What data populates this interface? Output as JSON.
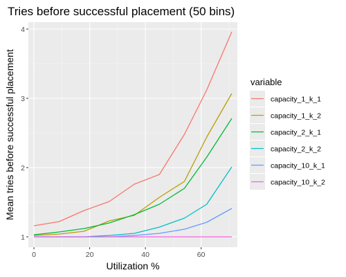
{
  "chart_data": {
    "type": "line",
    "title": "Tries before successful placement (50 bins)",
    "xlabel": "Utilization %",
    "ylabel": "Mean tries before successful placement",
    "xlim": [
      -2,
      73
    ],
    "ylim": [
      0.85,
      4.1
    ],
    "x_ticks": [
      0,
      20,
      40,
      60
    ],
    "x_tick_labels": [
      "0",
      "20",
      "40",
      "60"
    ],
    "y_ticks": [
      1,
      2,
      3,
      4
    ],
    "y_tick_labels": [
      "1",
      "2",
      "3",
      "4"
    ],
    "grid": true,
    "legend": {
      "title": "variable",
      "placement": "right"
    },
    "x": [
      0,
      9,
      18,
      27,
      36,
      45,
      54,
      62,
      71
    ],
    "series": [
      {
        "name": "capacity_1_k_1",
        "color": "#F8766D",
        "values": [
          1.16,
          1.22,
          1.38,
          1.51,
          1.76,
          1.9,
          2.48,
          3.12,
          3.96
        ]
      },
      {
        "name": "capacity_1_k_2",
        "color": "#B79F00",
        "values": [
          1.02,
          1.04,
          1.08,
          1.23,
          1.31,
          1.57,
          1.8,
          2.44,
          3.07
        ]
      },
      {
        "name": "capacity_2_k_1",
        "color": "#00BA38",
        "values": [
          1.03,
          1.07,
          1.12,
          1.2,
          1.32,
          1.47,
          1.7,
          2.15,
          2.71
        ]
      },
      {
        "name": "capacity_2_k_2",
        "color": "#00BFC4",
        "values": [
          1.0,
          1.0,
          1.0,
          1.02,
          1.05,
          1.14,
          1.27,
          1.47,
          2.01
        ]
      },
      {
        "name": "capacity_10_k_1",
        "color": "#619CFF",
        "values": [
          1.0,
          1.0,
          1.0,
          1.0,
          1.02,
          1.05,
          1.11,
          1.21,
          1.41
        ]
      },
      {
        "name": "capacity_10_k_2",
        "color": "#F564E3",
        "values": [
          1.0,
          1.0,
          1.0,
          1.0,
          1.0,
          1.0,
          1.0,
          1.0,
          1.0
        ]
      }
    ]
  }
}
